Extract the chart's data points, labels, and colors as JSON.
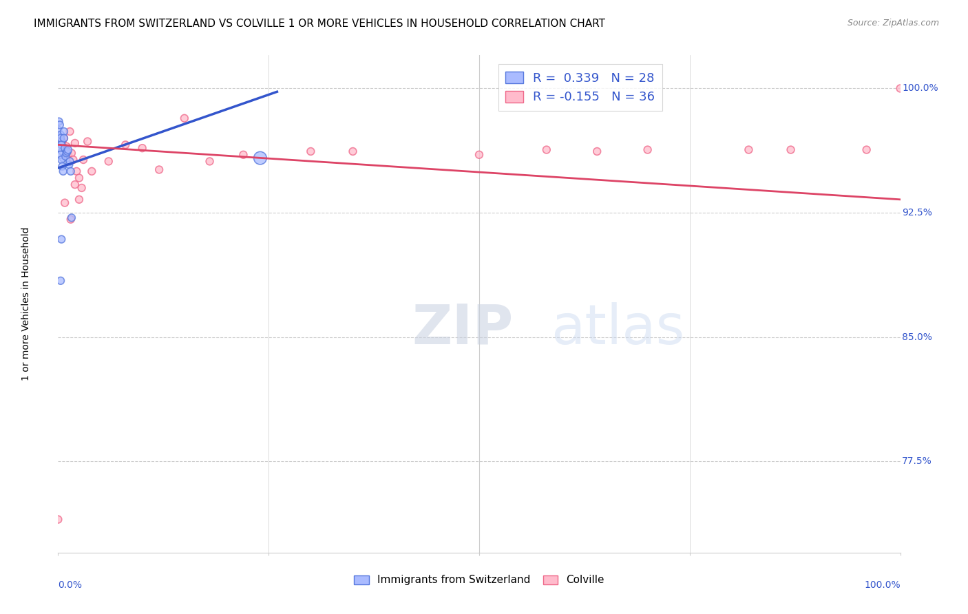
{
  "title": "IMMIGRANTS FROM SWITZERLAND VS COLVILLE 1 OR MORE VEHICLES IN HOUSEHOLD CORRELATION CHART",
  "source": "Source: ZipAtlas.com",
  "ylabel": "1 or more Vehicles in Household",
  "xlim": [
    0.0,
    1.0
  ],
  "ylim": [
    0.72,
    1.02
  ],
  "yticks": [
    0.775,
    0.85,
    0.925,
    1.0
  ],
  "ytick_labels": [
    "77.5%",
    "85.0%",
    "92.5%",
    "100.0%"
  ],
  "blue_color": "#3355cc",
  "pink_color": "#dd4466",
  "blue_scatter_face": "#aabbff",
  "blue_scatter_edge": "#5577dd",
  "pink_scatter_face": "#ffbbcc",
  "pink_scatter_edge": "#ee6688",
  "grid_color": "#cccccc",
  "background_color": "#ffffff",
  "title_fontsize": 11,
  "source_fontsize": 9,
  "blue_legend_label": "R =  0.339   N = 28",
  "pink_legend_label": "R = -0.155   N = 36",
  "legend_label1": "Immigrants from Switzerland",
  "legend_label2": "Colville",
  "watermark": "ZIPatlas",
  "blue_line_x0": 0.0,
  "blue_line_x1": 0.26,
  "blue_line_y0": 0.952,
  "blue_line_y1": 0.998,
  "pink_line_x0": 0.0,
  "pink_line_x1": 1.0,
  "pink_line_y0": 0.966,
  "pink_line_y1": 0.933,
  "blue_x": [
    0.0,
    0.001,
    0.002,
    0.003,
    0.004,
    0.005,
    0.006,
    0.007,
    0.003,
    0.004,
    0.002,
    0.003,
    0.004,
    0.005,
    0.006,
    0.007,
    0.008,
    0.009,
    0.01,
    0.011,
    0.012,
    0.013,
    0.014,
    0.015,
    0.24,
    0.016,
    0.004,
    0.003
  ],
  "blue_y": [
    0.975,
    0.98,
    0.978,
    0.972,
    0.968,
    0.962,
    0.958,
    0.974,
    0.97,
    0.966,
    0.964,
    0.96,
    0.957,
    0.953,
    0.95,
    0.97,
    0.964,
    0.959,
    0.961,
    0.962,
    0.963,
    0.954,
    0.956,
    0.95,
    0.958,
    0.922,
    0.909,
    0.884
  ],
  "blue_sizes": [
    60,
    60,
    60,
    60,
    60,
    60,
    60,
    60,
    60,
    60,
    60,
    60,
    60,
    60,
    60,
    60,
    60,
    60,
    60,
    60,
    60,
    60,
    60,
    60,
    180,
    60,
    60,
    60
  ],
  "pink_x": [
    0.0,
    0.005,
    0.007,
    0.01,
    0.012,
    0.014,
    0.016,
    0.018,
    0.02,
    0.022,
    0.025,
    0.028,
    0.03,
    0.035,
    0.04,
    0.06,
    0.08,
    0.1,
    0.12,
    0.15,
    0.18,
    0.22,
    0.3,
    0.35,
    0.5,
    0.58,
    0.64,
    0.7,
    0.82,
    0.87,
    0.96,
    1.0,
    0.008,
    0.015,
    0.02,
    0.025
  ],
  "pink_y": [
    0.74,
    0.968,
    0.97,
    0.965,
    0.96,
    0.974,
    0.961,
    0.957,
    0.967,
    0.95,
    0.946,
    0.94,
    0.957,
    0.968,
    0.95,
    0.956,
    0.966,
    0.964,
    0.951,
    0.982,
    0.956,
    0.96,
    0.962,
    0.962,
    0.96,
    0.963,
    0.962,
    0.963,
    0.963,
    0.963,
    0.963,
    1.0,
    0.931,
    0.921,
    0.942,
    0.933
  ],
  "pink_sizes": [
    60,
    60,
    60,
    60,
    60,
    60,
    60,
    60,
    60,
    60,
    60,
    60,
    60,
    60,
    60,
    60,
    60,
    60,
    60,
    60,
    60,
    60,
    60,
    60,
    60,
    60,
    60,
    60,
    60,
    60,
    60,
    60,
    60,
    60,
    60,
    60
  ]
}
